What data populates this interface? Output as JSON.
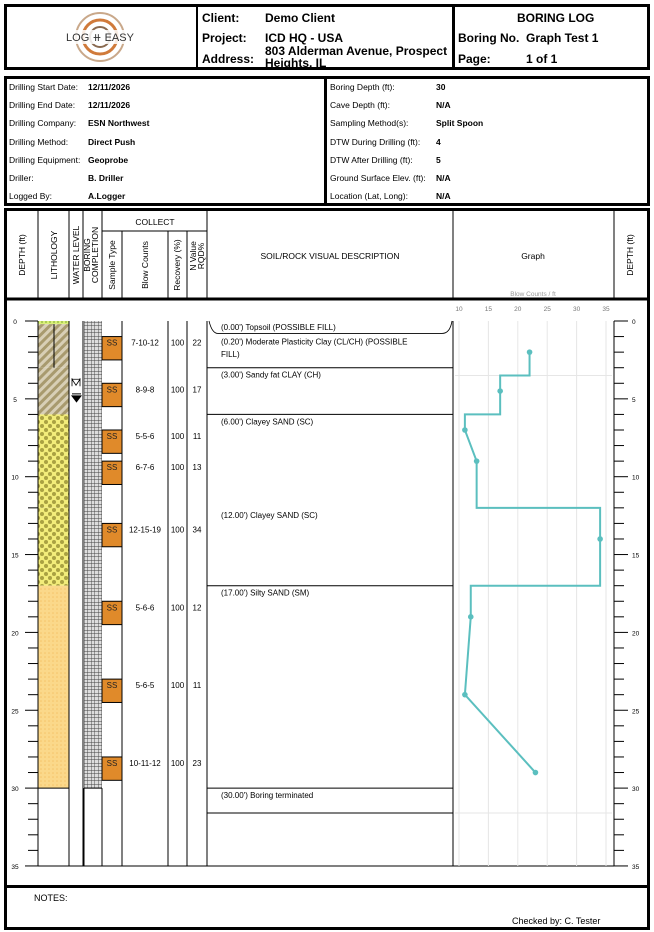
{
  "header": {
    "logo_text": "LOG IT EASY",
    "client_label": "Client:",
    "client": "Demo Client",
    "project_label": "Project:",
    "project": "ICD HQ - USA",
    "address_label": "Address:",
    "address_line1": "803 Alderman Avenue, Prospect",
    "address_line2": "Heights, IL",
    "title": "BORING LOG",
    "boring_no_label": "Boring No.",
    "boring_no": "Graph Test 1",
    "page_label": "Page:",
    "page": "1 of 1"
  },
  "info_left": [
    {
      "label": "Drilling Start Date:",
      "value": "12/11/2026"
    },
    {
      "label": "Drilling End Date:",
      "value": "12/11/2026"
    },
    {
      "label": "Drilling Company:",
      "value": "ESN Northwest"
    },
    {
      "label": "Drilling Method:",
      "value": "Direct Push"
    },
    {
      "label": "Drilling Equipment:",
      "value": "Geoprobe"
    },
    {
      "label": "Driller:",
      "value": "B. Driller"
    },
    {
      "label": "Logged By:",
      "value": "A.Logger"
    }
  ],
  "info_right": [
    {
      "label": "Boring Depth (ft):",
      "value": "30"
    },
    {
      "label": "Cave Depth (ft):",
      "value": "N/A"
    },
    {
      "label": "Sampling Method(s):",
      "value": "Split Spoon"
    },
    {
      "label": "DTW During Drilling (ft):",
      "value": "4"
    },
    {
      "label": "DTW After Drilling (ft):",
      "value": "5"
    },
    {
      "label": "Ground Surface Elev. (ft):",
      "value": "N/A"
    },
    {
      "label": "Location (Lat, Long):",
      "value": "N/A"
    }
  ],
  "columns": {
    "depth": "DEPTH (ft)",
    "lithology": "LITHOLOGY",
    "water": "WATER LEVEL",
    "boring1": "BORING",
    "boring2": "COMPLETION",
    "collect": "COLLECT",
    "sample_type": "Sample Type",
    "blow_counts": "Blow Counts",
    "recovery": "Recovery (%)",
    "nvalue1": "N Value",
    "nvalue2": "RQD%",
    "description": "SOIL/ROCK VISUAL DESCRIPTION",
    "graph": "Graph",
    "graph_unit": "Blow Counts / ft",
    "depth_right": "DEPTH (ft)"
  },
  "depth_labels": [
    "0",
    "5",
    "10",
    "15",
    "20",
    "25",
    "30",
    "35"
  ],
  "samples": [
    {
      "top": 1,
      "type": "SS",
      "blows": "7-10-12",
      "recovery": "100",
      "n": "22"
    },
    {
      "top": 4,
      "type": "SS",
      "blows": "8-9-8",
      "recovery": "100",
      "n": "17"
    },
    {
      "top": 7,
      "type": "SS",
      "blows": "5-5-6",
      "recovery": "100",
      "n": "11"
    },
    {
      "top": 9,
      "type": "SS",
      "blows": "6-7-6",
      "recovery": "100",
      "n": "13"
    },
    {
      "top": 13,
      "type": "SS",
      "blows": "12-15-19",
      "recovery": "100",
      "n": "34"
    },
    {
      "top": 18,
      "type": "SS",
      "blows": "5-6-6",
      "recovery": "100",
      "n": "12"
    },
    {
      "top": 23,
      "type": "SS",
      "blows": "5-6-5",
      "recovery": "100",
      "n": "11"
    },
    {
      "top": 28,
      "type": "SS",
      "blows": "10-11-12",
      "recovery": "100",
      "n": "23"
    }
  ],
  "strata": [
    {
      "top": 0,
      "bottom": 0.2,
      "pattern": "topsoil",
      "text": "(0.00') Topsoil (POSSIBLE FILL)"
    },
    {
      "top": 0.2,
      "bottom": 3,
      "pattern": "clay",
      "text": "(0.20') Moderate Plasticity Clay (CL/CH) (POSSIBLE",
      "text2": "FILL)"
    },
    {
      "top": 3,
      "bottom": 6,
      "pattern": "clay",
      "text": "(3.00') Sandy fat CLAY (CH)"
    },
    {
      "top": 6,
      "bottom": 12,
      "pattern": "clayeysand",
      "text": "(6.00') Clayey SAND (SC)",
      "noline": true
    },
    {
      "top": 12,
      "bottom": 17,
      "pattern": "clayeysand",
      "text": "(12.00') Clayey SAND (SC)"
    },
    {
      "top": 17,
      "bottom": 30,
      "pattern": "siltysand",
      "text": "(17.00') Silty SAND (SM)"
    },
    {
      "top": 30,
      "bottom": 31.6,
      "pattern": "none",
      "text": "(30.00') Boring terminated"
    }
  ],
  "water_levels": [
    {
      "depth": 4,
      "kind": "during"
    },
    {
      "depth": 5,
      "kind": "after"
    }
  ],
  "colors": {
    "sample": "#e08a2a",
    "graph_line": "#5bbfbf",
    "grid": "#e6e6e6"
  },
  "chart_data": {
    "type": "line",
    "title": "Graph",
    "xlabel": "Blow Counts / ft",
    "ylabel": "DEPTH (ft)",
    "xlim": [
      10,
      35
    ],
    "ylim": [
      0,
      35
    ],
    "x_ticks": [
      "10",
      "15",
      "20",
      "25",
      "30",
      "35"
    ],
    "points": [
      {
        "depth": 2,
        "value": 22
      },
      {
        "depth": 4.5,
        "value": 17
      },
      {
        "depth": 7,
        "value": 11
      },
      {
        "depth": 9,
        "value": 13
      },
      {
        "depth": 14,
        "value": 34
      },
      {
        "depth": 19,
        "value": 12
      },
      {
        "depth": 24,
        "value": 11
      },
      {
        "depth": 29,
        "value": 23
      }
    ],
    "path": [
      [
        22,
        2
      ],
      [
        22,
        3.5
      ],
      [
        17,
        3.5
      ],
      [
        17,
        6
      ],
      [
        11,
        6
      ],
      [
        11,
        7
      ],
      [
        13,
        9
      ],
      [
        13,
        12
      ],
      [
        34,
        12
      ],
      [
        34,
        17
      ],
      [
        12,
        17
      ],
      [
        12,
        19
      ],
      [
        11,
        24
      ],
      [
        23,
        29
      ]
    ]
  },
  "notes_label": "NOTES:",
  "checked_by": "Checked by: C. Tester"
}
